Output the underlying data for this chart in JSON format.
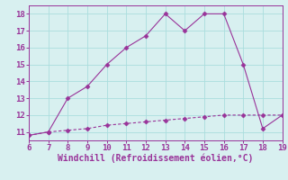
{
  "xlabel": "Windchill (Refroidissement éolien,°C)",
  "line1_x": [
    6,
    7,
    8,
    9,
    10,
    11,
    12,
    13,
    14,
    15,
    16,
    17,
    18,
    19
  ],
  "line1_y": [
    10.8,
    11.0,
    13.0,
    13.7,
    15.0,
    16.0,
    16.7,
    18.0,
    17.0,
    18.0,
    18.0,
    15.0,
    11.2,
    12.0
  ],
  "line2_x": [
    6,
    7,
    8,
    9,
    10,
    11,
    12,
    13,
    14,
    15,
    16,
    17,
    18,
    19
  ],
  "line2_y": [
    10.8,
    11.0,
    11.1,
    11.2,
    11.4,
    11.5,
    11.6,
    11.7,
    11.8,
    11.9,
    12.0,
    12.0,
    12.0,
    12.0
  ],
  "line_color": "#993399",
  "bg_color": "#d8f0f0",
  "grid_color": "#aadddd",
  "xlim": [
    6,
    19
  ],
  "ylim": [
    10.5,
    18.5
  ],
  "xticks": [
    6,
    7,
    8,
    9,
    10,
    11,
    12,
    13,
    14,
    15,
    16,
    17,
    18,
    19
  ],
  "yticks": [
    11,
    12,
    13,
    14,
    15,
    16,
    17,
    18
  ],
  "tick_fontsize": 6.5,
  "xlabel_fontsize": 7,
  "marker": "D",
  "markersize": 2.5,
  "linewidth": 0.8
}
